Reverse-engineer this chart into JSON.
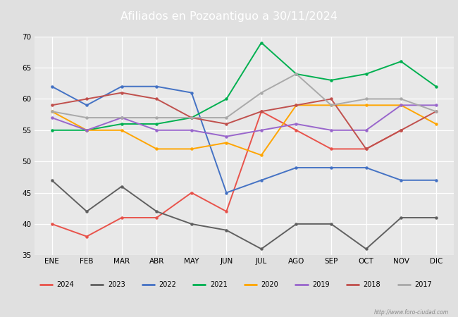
{
  "title": "Afiliados en Pozoantiguo a 30/11/2024",
  "title_color": "#ffffff",
  "title_bg_color": "#4472c4",
  "ylim": [
    35,
    70
  ],
  "yticks": [
    35,
    40,
    45,
    50,
    55,
    60,
    65,
    70
  ],
  "months": [
    "ENE",
    "FEB",
    "MAR",
    "ABR",
    "MAY",
    "JUN",
    "JUL",
    "AGO",
    "SEP",
    "OCT",
    "NOV",
    "DIC"
  ],
  "series": {
    "2024": {
      "color": "#e8534b",
      "data": [
        40.0,
        38.0,
        41.0,
        41.0,
        45.0,
        42.0,
        58.0,
        55.0,
        52.0,
        52.0,
        55.0,
        null
      ]
    },
    "2023": {
      "color": "#606060",
      "data": [
        47.0,
        42.0,
        46.0,
        42.0,
        40.0,
        39.0,
        36.0,
        40.0,
        40.0,
        36.0,
        41.0,
        41.0
      ]
    },
    "2022": {
      "color": "#4472c4",
      "data": [
        62.0,
        59.0,
        62.0,
        62.0,
        61.0,
        45.0,
        47.0,
        49.0,
        49.0,
        49.0,
        47.0,
        47.0
      ]
    },
    "2021": {
      "color": "#00b050",
      "data": [
        55.0,
        55.0,
        56.0,
        56.0,
        57.0,
        60.0,
        69.0,
        64.0,
        63.0,
        64.0,
        66.0,
        62.0
      ]
    },
    "2020": {
      "color": "#ffa500",
      "data": [
        58.0,
        55.0,
        55.0,
        52.0,
        52.0,
        53.0,
        51.0,
        59.0,
        59.0,
        59.0,
        59.0,
        56.0
      ]
    },
    "2019": {
      "color": "#9966cc",
      "data": [
        57.0,
        55.0,
        57.0,
        55.0,
        55.0,
        54.0,
        55.0,
        56.0,
        55.0,
        55.0,
        59.0,
        59.0
      ]
    },
    "2018": {
      "color": "#c0504d",
      "data": [
        59.0,
        60.0,
        61.0,
        60.0,
        57.0,
        56.0,
        58.0,
        59.0,
        60.0,
        52.0,
        55.0,
        58.0
      ]
    },
    "2017": {
      "color": "#a9a9a9",
      "data": [
        58.0,
        57.0,
        57.0,
        57.0,
        57.0,
        57.0,
        61.0,
        64.0,
        59.0,
        60.0,
        60.0,
        58.0
      ]
    }
  },
  "legend_order": [
    "2024",
    "2023",
    "2022",
    "2021",
    "2020",
    "2019",
    "2018",
    "2017"
  ],
  "watermark": "http://www.foro-ciudad.com",
  "outer_bg": "#e0e0e0",
  "plot_bg_color": "#e8e8e8"
}
